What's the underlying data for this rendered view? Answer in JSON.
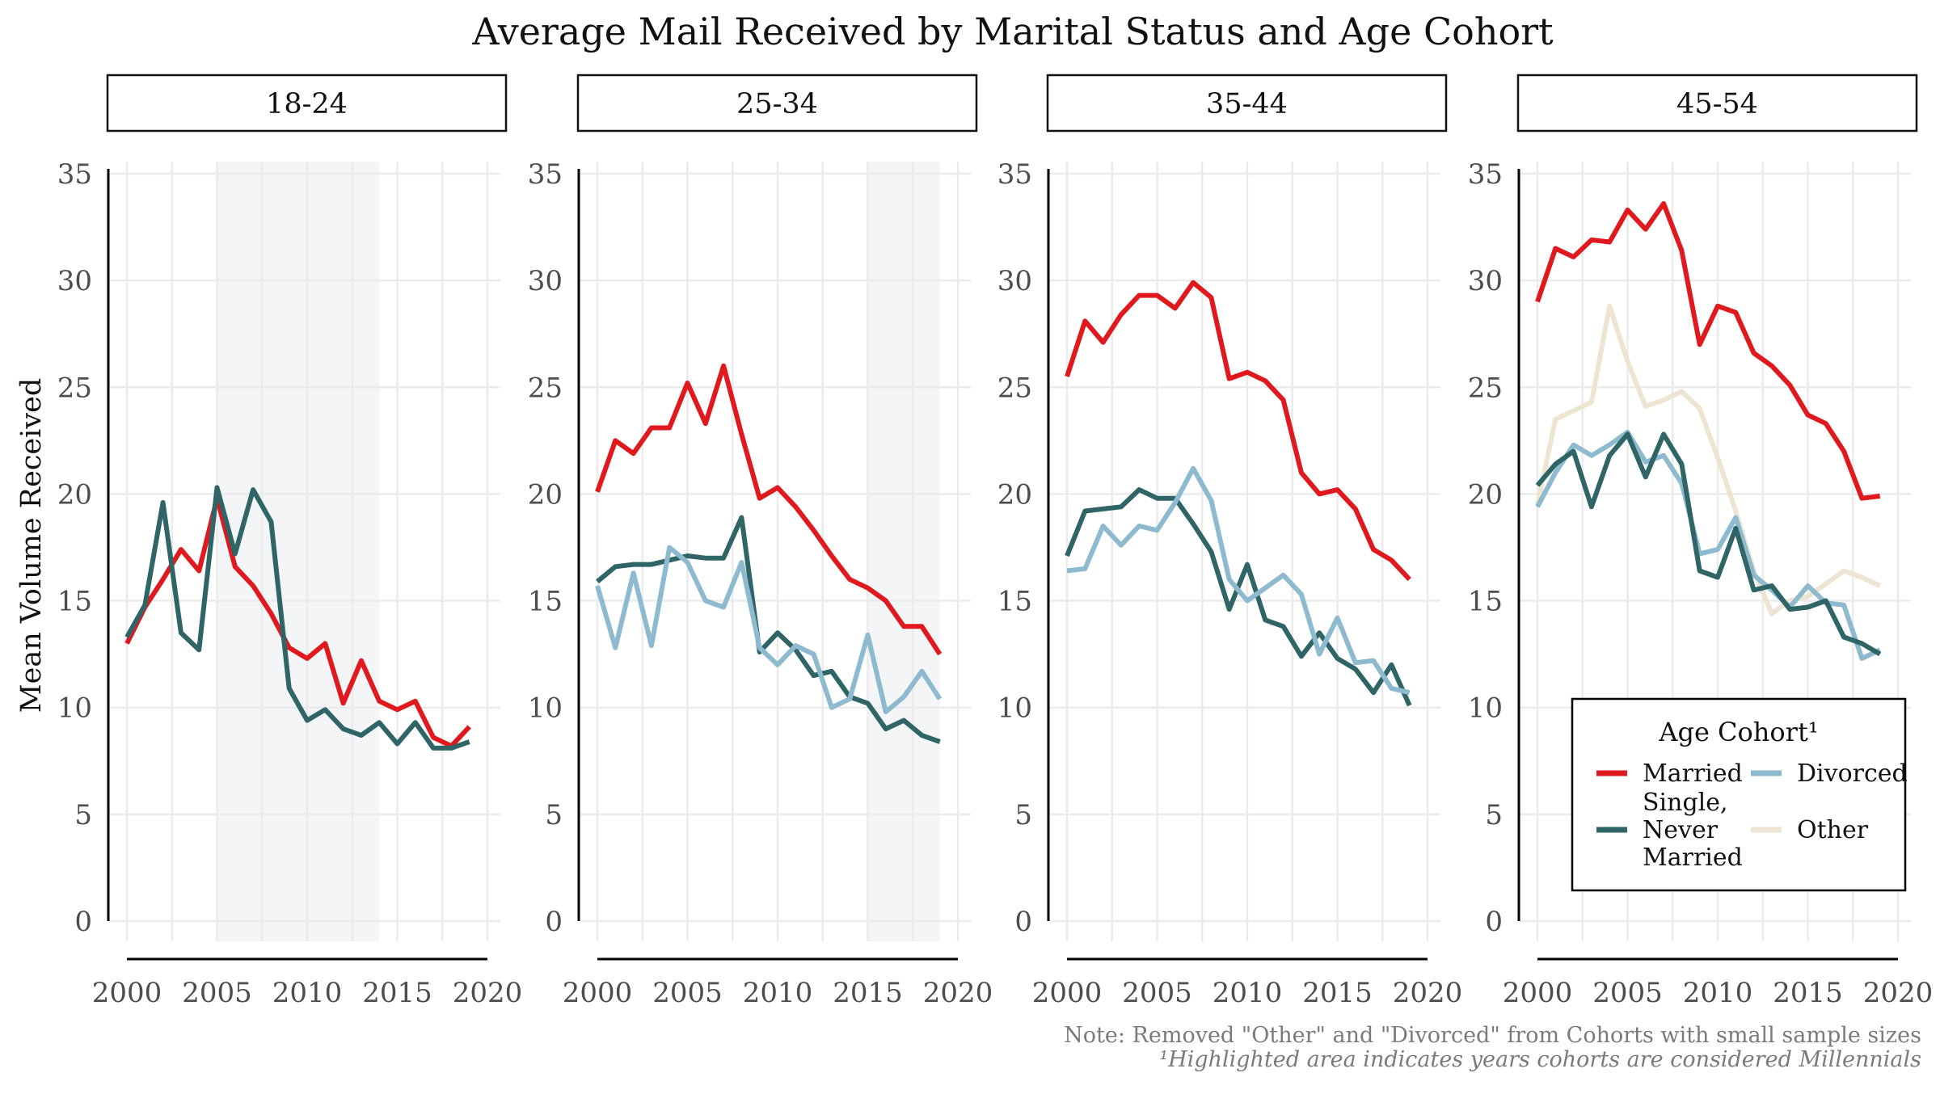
{
  "title": "Average Mail Received by Marital Status and Age Cohort",
  "ylabel": "Mean Volume Received",
  "note": "Note: Removed \"Other\" and \"Divorced\" from Cohorts with small sample sizes",
  "footnote": "¹Highlighted area indicates years cohorts are considered Millennials",
  "legend": {
    "title": "Age Cohort¹",
    "placement": "bottom-right of last panel",
    "items": [
      {
        "key": "married",
        "label": "Married"
      },
      {
        "key": "divorced",
        "label": "Divorced"
      },
      {
        "key": "single",
        "label": "Single, Never Married"
      },
      {
        "key": "other",
        "label": "Other"
      }
    ]
  },
  "colors": {
    "married": "#e0191e",
    "single": "#2f6567",
    "divorced": "#8dbacf",
    "other": "#ede5d2",
    "highlight": "#f4f5f7",
    "grid": "#ebebeb"
  },
  "chart_data": {
    "type": "line",
    "faceted": true,
    "grid": true,
    "xlim": [
      2000,
      2020
    ],
    "ylim": [
      0,
      35
    ],
    "xticks": [
      2000,
      2005,
      2010,
      2015,
      2020
    ],
    "yticks": [
      0,
      5,
      10,
      15,
      20,
      25,
      30,
      35
    ],
    "panels": [
      {
        "label": "18-24",
        "highlight": [
          2005,
          2014
        ],
        "series": [
          {
            "key": "married",
            "x": [
              2000,
              2001,
              2002,
              2003,
              2004,
              2005,
              2006,
              2007,
              2008,
              2009,
              2010,
              2011,
              2012,
              2013,
              2014,
              2015,
              2016,
              2017,
              2018,
              2019
            ],
            "y": [
              13.0,
              14.7,
              16.0,
              17.4,
              16.4,
              19.8,
              16.6,
              15.7,
              14.4,
              12.8,
              12.3,
              13.0,
              10.2,
              12.2,
              10.3,
              9.9,
              10.3,
              8.6,
              8.2,
              9.1
            ]
          },
          {
            "key": "single",
            "x": [
              2000,
              2001,
              2002,
              2003,
              2004,
              2005,
              2006,
              2007,
              2008,
              2009,
              2010,
              2011,
              2012,
              2013,
              2014,
              2015,
              2016,
              2017,
              2018,
              2019
            ],
            "y": [
              13.3,
              14.8,
              19.6,
              13.5,
              12.7,
              20.3,
              17.2,
              20.2,
              18.7,
              10.9,
              9.4,
              9.9,
              9.0,
              8.7,
              9.3,
              8.3,
              9.3,
              8.1,
              8.1,
              8.4
            ]
          }
        ]
      },
      {
        "label": "25-34",
        "highlight": [
          2015,
          2019
        ],
        "series": [
          {
            "key": "married",
            "x": [
              2000,
              2001,
              2002,
              2003,
              2004,
              2005,
              2006,
              2007,
              2008,
              2009,
              2010,
              2011,
              2012,
              2013,
              2014,
              2015,
              2016,
              2017,
              2018,
              2019
            ],
            "y": [
              20.1,
              22.5,
              21.9,
              23.1,
              23.1,
              25.2,
              23.3,
              26.0,
              22.8,
              19.8,
              20.3,
              19.4,
              18.3,
              17.1,
              16.0,
              15.6,
              15.0,
              13.8,
              13.8,
              12.5
            ]
          },
          {
            "key": "single",
            "x": [
              2000,
              2001,
              2002,
              2003,
              2004,
              2005,
              2006,
              2007,
              2008,
              2009,
              2010,
              2011,
              2012,
              2013,
              2014,
              2015,
              2016,
              2017,
              2018,
              2019
            ],
            "y": [
              15.9,
              16.6,
              16.7,
              16.7,
              16.9,
              17.1,
              17.0,
              17.0,
              18.9,
              12.6,
              13.5,
              12.7,
              11.5,
              11.7,
              10.5,
              10.2,
              9.0,
              9.4,
              8.7,
              8.4
            ]
          },
          {
            "key": "divorced",
            "x": [
              2000,
              2001,
              2002,
              2003,
              2004,
              2005,
              2006,
              2007,
              2008,
              2009,
              2010,
              2011,
              2012,
              2013,
              2014,
              2015,
              2016,
              2017,
              2018,
              2019
            ],
            "y": [
              15.7,
              12.8,
              16.3,
              12.9,
              17.5,
              16.8,
              15.0,
              14.7,
              16.8,
              12.8,
              12.0,
              12.9,
              12.5,
              10.0,
              10.4,
              13.4,
              9.8,
              10.5,
              11.7,
              10.4
            ]
          }
        ]
      },
      {
        "label": "35-44",
        "highlight": null,
        "series": [
          {
            "key": "married",
            "x": [
              2000,
              2001,
              2002,
              2003,
              2004,
              2005,
              2006,
              2007,
              2008,
              2009,
              2010,
              2011,
              2012,
              2013,
              2014,
              2015,
              2016,
              2017,
              2018,
              2019
            ],
            "y": [
              25.5,
              28.1,
              27.1,
              28.4,
              29.3,
              29.3,
              28.7,
              29.9,
              29.2,
              25.4,
              25.7,
              25.3,
              24.4,
              21.0,
              20.0,
              20.2,
              19.3,
              17.4,
              16.9,
              16.0
            ]
          },
          {
            "key": "single",
            "x": [
              2000,
              2001,
              2002,
              2003,
              2004,
              2005,
              2006,
              2007,
              2008,
              2009,
              2010,
              2011,
              2012,
              2013,
              2014,
              2015,
              2016,
              2017,
              2018,
              2019
            ],
            "y": [
              17.1,
              19.2,
              19.3,
              19.4,
              20.2,
              19.8,
              19.8,
              18.6,
              17.3,
              14.6,
              16.7,
              14.1,
              13.8,
              12.4,
              13.5,
              12.3,
              11.8,
              10.7,
              12.0,
              10.1
            ]
          },
          {
            "key": "divorced",
            "x": [
              2000,
              2001,
              2002,
              2003,
              2004,
              2005,
              2006,
              2007,
              2008,
              2009,
              2010,
              2011,
              2012,
              2013,
              2014,
              2015,
              2016,
              2017,
              2018,
              2019
            ],
            "y": [
              16.4,
              16.5,
              18.5,
              17.6,
              18.5,
              18.3,
              19.6,
              21.2,
              19.7,
              16.0,
              15.0,
              15.6,
              16.2,
              15.3,
              12.5,
              14.2,
              12.1,
              12.2,
              10.9,
              10.7
            ]
          }
        ]
      },
      {
        "label": "45-54",
        "highlight": null,
        "series": [
          {
            "key": "other",
            "x": [
              2000,
              2001,
              2002,
              2003,
              2004,
              2005,
              2006,
              2007,
              2008,
              2009,
              2010,
              2011,
              2012,
              2013,
              2014,
              2015,
              2016,
              2017,
              2018,
              2019
            ],
            "y": [
              19.5,
              23.5,
              23.9,
              24.3,
              28.8,
              26.2,
              24.1,
              24.4,
              24.8,
              24.0,
              21.7,
              19.2,
              16.4,
              14.4,
              15.0,
              15.2,
              15.8,
              16.4,
              16.1,
              15.7
            ]
          },
          {
            "key": "divorced",
            "x": [
              2000,
              2001,
              2002,
              2003,
              2004,
              2005,
              2006,
              2007,
              2008,
              2009,
              2010,
              2011,
              2012,
              2013,
              2014,
              2015,
              2016,
              2017,
              2018,
              2019
            ],
            "y": [
              19.4,
              21.0,
              22.3,
              21.8,
              22.3,
              22.9,
              21.5,
              21.8,
              20.5,
              17.2,
              17.4,
              18.9,
              16.2,
              15.5,
              14.7,
              15.7,
              14.9,
              14.8,
              12.3,
              12.7
            ]
          },
          {
            "key": "single",
            "x": [
              2000,
              2001,
              2002,
              2003,
              2004,
              2005,
              2006,
              2007,
              2008,
              2009,
              2010,
              2011,
              2012,
              2013,
              2014,
              2015,
              2016,
              2017,
              2018,
              2019
            ],
            "y": [
              20.4,
              21.4,
              22.0,
              19.4,
              21.8,
              22.8,
              20.8,
              22.8,
              21.4,
              16.4,
              16.1,
              18.4,
              15.5,
              15.7,
              14.6,
              14.7,
              15.0,
              13.3,
              13.0,
              12.5
            ]
          },
          {
            "key": "married",
            "x": [
              2000,
              2001,
              2002,
              2003,
              2004,
              2005,
              2006,
              2007,
              2008,
              2009,
              2010,
              2011,
              2012,
              2013,
              2014,
              2015,
              2016,
              2017,
              2018,
              2019
            ],
            "y": [
              29.0,
              31.5,
              31.1,
              31.9,
              31.8,
              33.3,
              32.4,
              33.6,
              31.4,
              27.0,
              28.8,
              28.5,
              26.6,
              26.0,
              25.1,
              23.7,
              23.3,
              22.0,
              19.8,
              19.9
            ]
          }
        ]
      }
    ]
  }
}
